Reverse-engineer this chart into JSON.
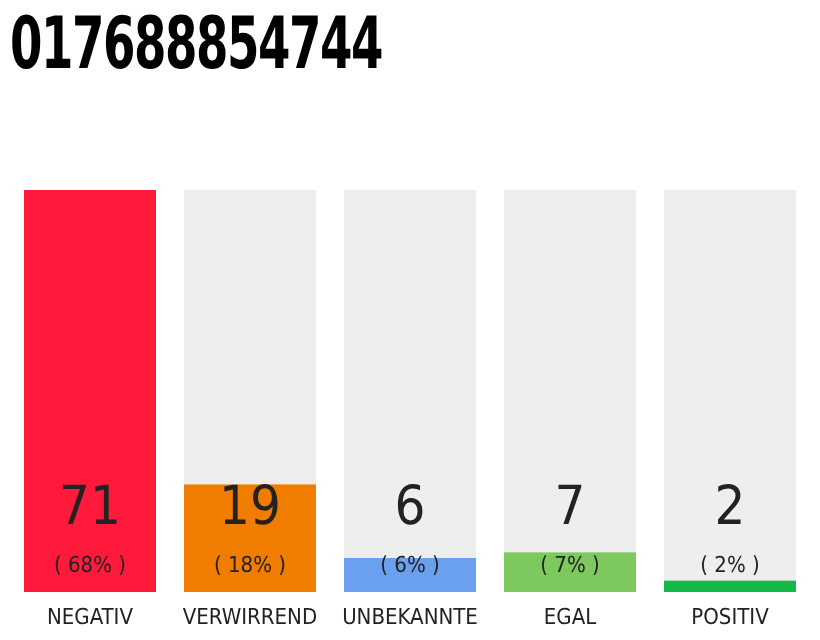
{
  "chart_data": {
    "type": "bar",
    "title": "017688854744",
    "categories": [
      "NEGATIV",
      "VERWIRREND",
      "UNBEKANNTE",
      "EGAL",
      "POSITIV"
    ],
    "values": [
      71,
      19,
      6,
      7,
      2
    ],
    "colors": [
      "#ff1a3c",
      "#f07c00",
      "#6aa0ee",
      "#7dc95e",
      "#17b84a"
    ],
    "data_labels": true,
    "annotations": [
      "( 68% )",
      "( 18% )",
      "( 6% )",
      "( 7% )",
      "( 2% )"
    ]
  }
}
